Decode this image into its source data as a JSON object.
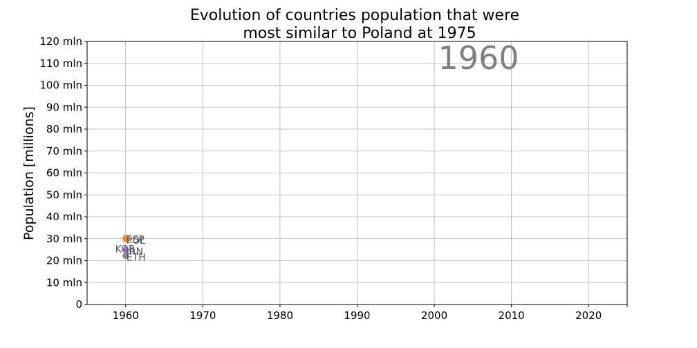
{
  "chart_data": {
    "type": "scatter",
    "title_lines": [
      "Evolution of countries population that were",
      "most similar to Poland at 1975"
    ],
    "xlabel": "",
    "ylabel": "Population [millions]",
    "xlim": [
      1955,
      2025
    ],
    "ylim": [
      0,
      120
    ],
    "x_ticks": [
      1960,
      1970,
      1980,
      1990,
      2000,
      2010,
      2020
    ],
    "y_ticks": [
      {
        "value": 0,
        "label": "0"
      },
      {
        "value": 10,
        "label": "10 mln"
      },
      {
        "value": 20,
        "label": "20 mln"
      },
      {
        "value": 30,
        "label": "30 mln"
      },
      {
        "value": 40,
        "label": "40 mln"
      },
      {
        "value": 50,
        "label": "50 mln"
      },
      {
        "value": 60,
        "label": "60 mln"
      },
      {
        "value": 70,
        "label": "70 mln"
      },
      {
        "value": 80,
        "label": "80 mln"
      },
      {
        "value": 90,
        "label": "90 mln"
      },
      {
        "value": 100,
        "label": "100 mln"
      },
      {
        "value": 110,
        "label": "110 mln"
      },
      {
        "value": 120,
        "label": "120 mln"
      }
    ],
    "grid": true,
    "year_label": "1960",
    "points": [
      {
        "label": "POL",
        "x": 1960,
        "y": 29.7,
        "color": "#f08a24",
        "label_side": "right",
        "label_dy": -0.4
      },
      {
        "label": "ESP",
        "x": 1960,
        "y": 30.5,
        "color": "#e98b3a",
        "label_side": "right",
        "label_dy": -0.7
      },
      {
        "label": "KOR",
        "x": 1960,
        "y": 25.0,
        "color": "#7f5fb3",
        "label_side": "left",
        "label_dy": 0.4
      },
      {
        "label": "IRN",
        "x": 1960,
        "y": 24.8,
        "color": "#9a6ad0",
        "label_side": "right",
        "label_dy": -0.6
      },
      {
        "label": "ETH",
        "x": 1960,
        "y": 22.2,
        "color": "#7a7a8a",
        "label_side": "right",
        "label_dy": -0.6
      }
    ]
  }
}
